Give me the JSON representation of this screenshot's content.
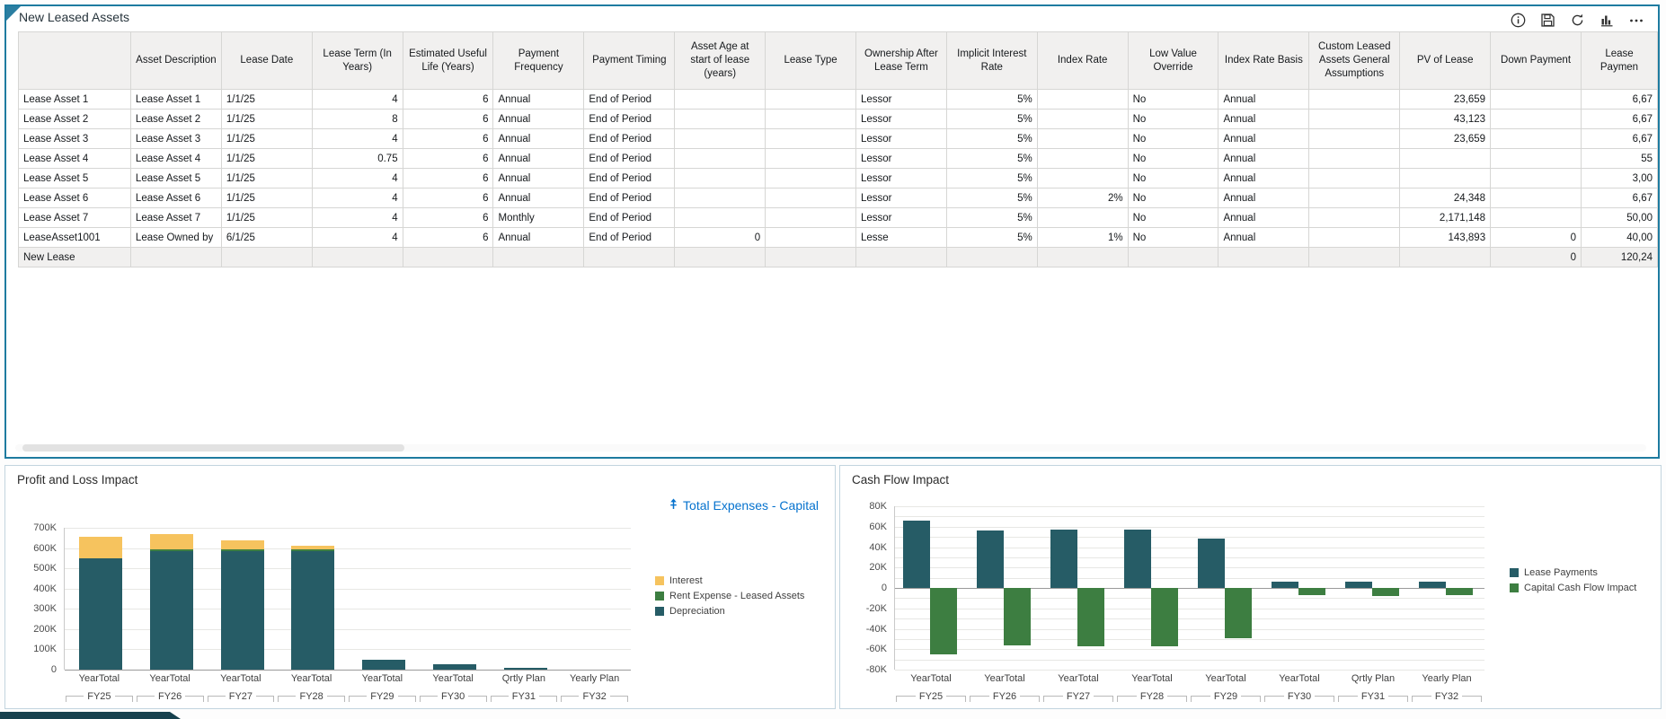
{
  "table_panel": {
    "title": "New Leased Assets",
    "toolbar_icons": [
      "info",
      "save",
      "refresh",
      "chart",
      "more"
    ],
    "columns": [
      "Asset Description",
      "Lease Date",
      "Lease Term (In Years)",
      "Estimated Useful Life (Years)",
      "Payment Frequency",
      "Payment Timing",
      "Asset Age at start of lease (years)",
      "Lease Type",
      "Ownership After Lease Term",
      "Implicit Interest Rate",
      "Index Rate",
      "Low Value Override",
      "Index Rate Basis",
      "Custom Leased Assets General Assumptions",
      "PV of Lease",
      "Down Payment",
      "Lease Paymen"
    ],
    "rows": [
      {
        "header": "Lease Asset 1",
        "cells": [
          "Lease Asset 1",
          "1/1/25",
          "4",
          "6",
          "Annual",
          "End of Period",
          "",
          "",
          "Lessor",
          "5%",
          "",
          "No",
          "Annual",
          "",
          "23,659",
          "",
          "6,67"
        ]
      },
      {
        "header": "Lease Asset 2",
        "cells": [
          "Lease Asset 2",
          "1/1/25",
          "8",
          "6",
          "Annual",
          "End of Period",
          "",
          "",
          "Lessor",
          "5%",
          "",
          "No",
          "Annual",
          "",
          "43,123",
          "",
          "6,67"
        ]
      },
      {
        "header": "Lease Asset 3",
        "cells": [
          "Lease Asset 3",
          "1/1/25",
          "4",
          "6",
          "Annual",
          "End of Period",
          "",
          "",
          "Lessor",
          "5%",
          "",
          "No",
          "Annual",
          "",
          "23,659",
          "",
          "6,67"
        ]
      },
      {
        "header": "Lease Asset 4",
        "cells": [
          "Lease Asset 4",
          "1/1/25",
          "0.75",
          "6",
          "Annual",
          "End of Period",
          "",
          "",
          "Lessor",
          "5%",
          "",
          "No",
          "Annual",
          "",
          "",
          "",
          "55"
        ]
      },
      {
        "header": "Lease Asset 5",
        "cells": [
          "Lease Asset 5",
          "1/1/25",
          "4",
          "6",
          "Annual",
          "End of Period",
          "",
          "",
          "Lessor",
          "5%",
          "",
          "No",
          "Annual",
          "",
          "",
          "",
          "3,00"
        ]
      },
      {
        "header": "Lease Asset 6",
        "cells": [
          "Lease Asset 6",
          "1/1/25",
          "4",
          "6",
          "Annual",
          "End of Period",
          "",
          "",
          "Lessor",
          "5%",
          "2%",
          "No",
          "Annual",
          "",
          "24,348",
          "",
          "6,67"
        ]
      },
      {
        "header": "Lease Asset 7",
        "cells": [
          "Lease Asset 7",
          "1/1/25",
          "4",
          "6",
          "Monthly",
          "End of Period",
          "",
          "",
          "Lessor",
          "5%",
          "",
          "No",
          "Annual",
          "",
          "2,171,148",
          "",
          "50,00"
        ]
      },
      {
        "header": "LeaseAsset1001",
        "cells": [
          "Lease Owned by",
          "6/1/25",
          "4",
          "6",
          "Annual",
          "End of Period",
          "0",
          "",
          "Lesse",
          "5%",
          "1%",
          "No",
          "Annual",
          "",
          "143,893",
          "0",
          "40,00"
        ]
      },
      {
        "header": "New Lease",
        "cells": [
          "",
          "",
          "",
          "",
          "",
          "",
          "",
          "",
          "",
          "",
          "",
          "",
          "",
          "",
          "",
          "0",
          "120,24"
        ],
        "grey": true
      }
    ]
  },
  "chart_data": [
    {
      "type": "bar",
      "stacked": true,
      "title": "Profit and Loss Impact",
      "link_label": "Total Expenses - Capital",
      "categories": [
        [
          "YearTotal",
          "FY25"
        ],
        [
          "YearTotal",
          "FY26"
        ],
        [
          "YearTotal",
          "FY27"
        ],
        [
          "YearTotal",
          "FY28"
        ],
        [
          "YearTotal",
          "FY29"
        ],
        [
          "YearTotal",
          "FY30"
        ],
        [
          "Qrtly Plan",
          "FY31"
        ],
        [
          "Yearly Plan",
          "FY32"
        ]
      ],
      "unit": "K",
      "ylim": [
        0,
        700
      ],
      "ytick_step": 100,
      "legend_position": "right",
      "series": [
        {
          "name": "Interest",
          "color": "#f6c35e",
          "values": [
            105,
            75,
            45,
            20,
            0,
            0,
            0,
            0
          ]
        },
        {
          "name": "Rent Expense - Leased Assets",
          "color": "#3d7e41",
          "values": [
            0,
            8,
            8,
            8,
            0,
            0,
            0,
            0
          ]
        },
        {
          "name": "Depreciation",
          "color": "#265c66",
          "values": [
            550,
            585,
            585,
            585,
            50,
            28,
            11,
            0
          ]
        }
      ]
    },
    {
      "type": "bar",
      "stacked": false,
      "title": "Cash Flow Impact",
      "categories": [
        [
          "YearTotal",
          "FY25"
        ],
        [
          "YearTotal",
          "FY26"
        ],
        [
          "YearTotal",
          "FY27"
        ],
        [
          "YearTotal",
          "FY28"
        ],
        [
          "YearTotal",
          "FY29"
        ],
        [
          "YearTotal",
          "FY30"
        ],
        [
          "Qrtly Plan",
          "FY31"
        ],
        [
          "Yearly Plan",
          "FY32"
        ]
      ],
      "unit": "K",
      "ylim": [
        -80,
        80
      ],
      "ytick_step": 20,
      "grid_step": 10,
      "legend_position": "right",
      "series": [
        {
          "name": "Lease Payments",
          "color": "#265c66",
          "values": [
            66,
            56,
            57,
            57,
            48,
            6,
            6,
            6
          ]
        },
        {
          "name": "Capital Cash Flow Impact",
          "color": "#3d7e41",
          "values": [
            -65,
            -56,
            -57,
            -57,
            -49,
            -7,
            -8,
            -7
          ]
        }
      ]
    }
  ]
}
